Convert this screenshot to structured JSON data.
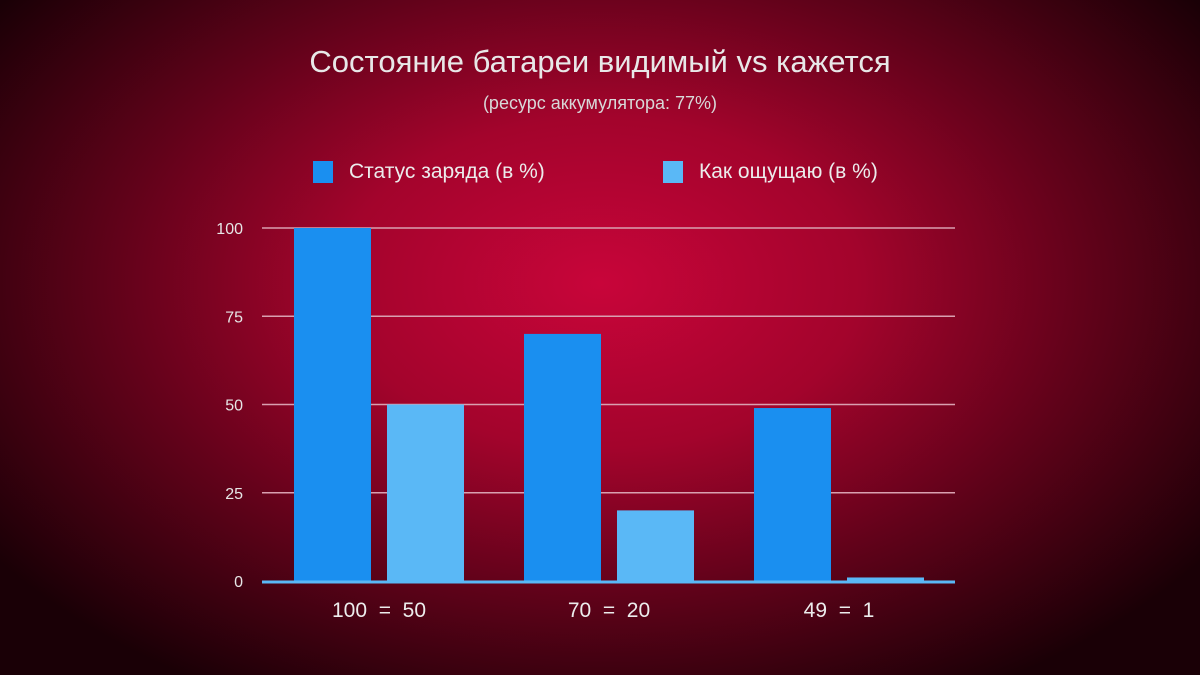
{
  "chart_data": {
    "type": "bar",
    "title": "Состояние батареи видимый vs кажется",
    "subtitle": "(ресурс аккумулятора: 77%)",
    "categories": [
      "100  =  50",
      "70  =  20",
      "49  =  1"
    ],
    "series": [
      {
        "name": "Статус заряда (в %)",
        "values": [
          100,
          70,
          49
        ],
        "color": "#1a8ff0"
      },
      {
        "name": "Как ощущаю (в %)",
        "values": [
          50,
          20,
          1
        ],
        "color": "#5ab8f6"
      }
    ],
    "yticks": [
      "0",
      "25",
      "50",
      "75",
      "100"
    ],
    "ylim": [
      0,
      100
    ],
    "grid": true,
    "legend": "top"
  }
}
